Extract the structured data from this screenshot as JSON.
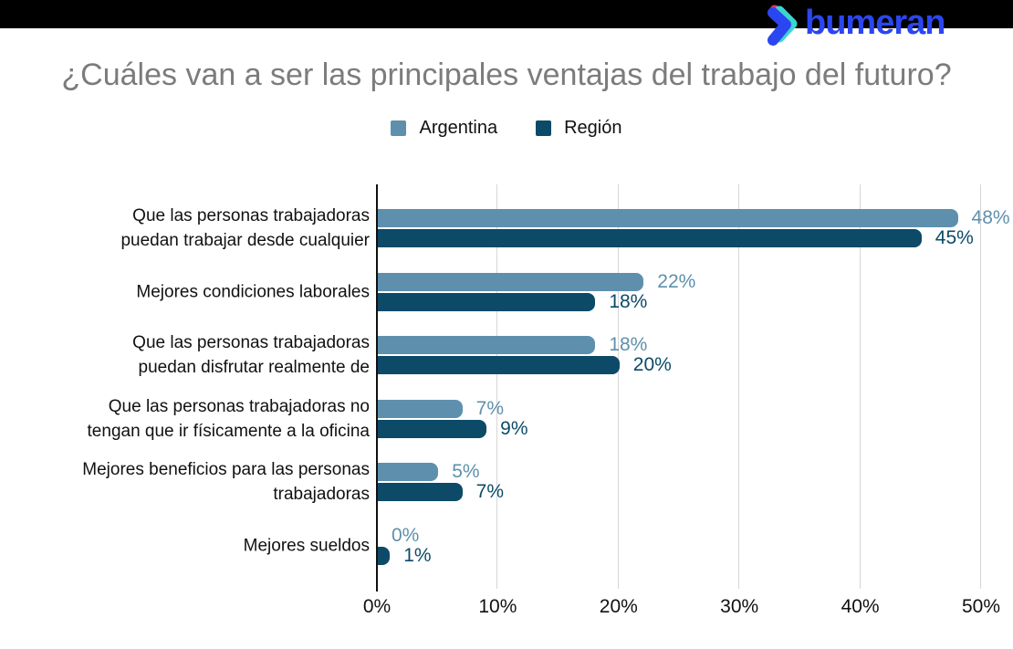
{
  "logo": {
    "text": "bumeran",
    "text_color": "#2b46f0",
    "icon_colors": {
      "teal": "#3ad6cd",
      "pink": "#e8316b",
      "blue": "#2b46f0"
    }
  },
  "title": "¿Cuáles van a ser las principales ventajas del trabajo del futuro?",
  "chart_data": {
    "type": "bar",
    "orientation": "horizontal",
    "title": "¿Cuáles van a ser las principales ventajas del trabajo del futuro?",
    "categories": [
      "Que las personas trabajadoras\npuedan trabajar desde cualquier",
      "Mejores condiciones laborales",
      "Que las personas trabajadoras\npuedan disfrutar realmente de",
      "Que las personas trabajadoras no\ntengan que ir físicamente a la oficina",
      "Mejores beneficios para las personas\ntrabajadoras",
      "Mejores sueldos"
    ],
    "series": [
      {
        "name": "Argentina",
        "color": "#5e90ae",
        "values": [
          48,
          22,
          18,
          7,
          5,
          0
        ]
      },
      {
        "name": "Región",
        "color": "#0c4a68",
        "values": [
          45,
          18,
          20,
          9,
          7,
          1
        ]
      }
    ],
    "value_label_suffix": "%",
    "x_ticks": [
      "0%",
      "10%",
      "20%",
      "30%",
      "40%",
      "50%"
    ],
    "xlim": [
      0,
      50
    ],
    "grid": "vertical",
    "legend_position": "top-center",
    "gridline_color": "#d6d6d6",
    "axis_color": "#111111"
  }
}
